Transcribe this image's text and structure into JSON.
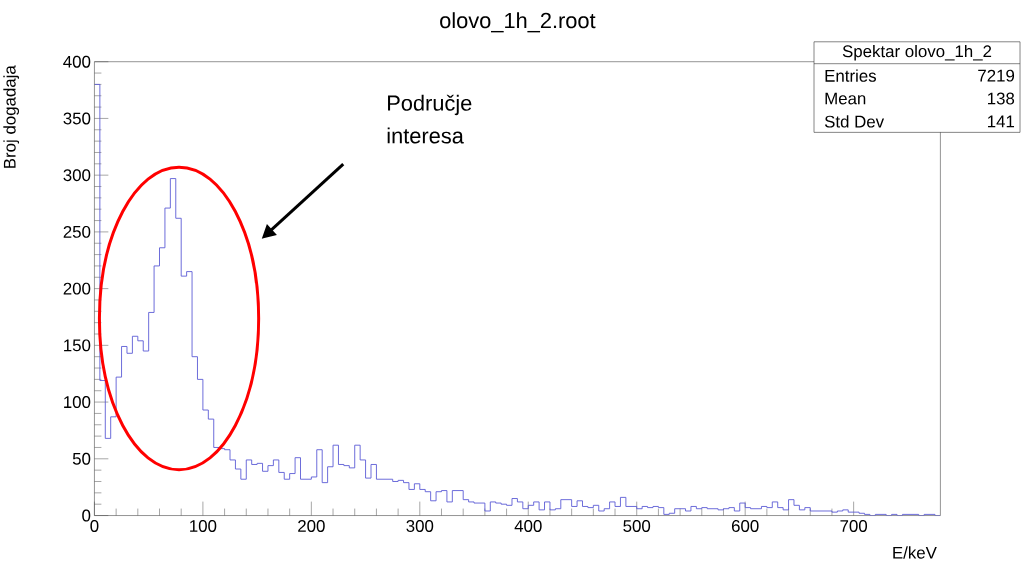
{
  "chart_data": {
    "type": "histogram",
    "title": "olovo_1h_2.root",
    "xlabel": "E/keV",
    "ylabel": "Broj dogadaja",
    "color": "#5c5cd6",
    "bins": [
      0,
      5,
      10,
      15,
      20,
      25,
      30,
      35,
      40,
      45,
      50,
      55,
      60,
      65,
      70,
      75,
      80,
      85,
      90,
      95,
      100,
      105,
      110,
      115,
      120,
      125,
      130,
      135,
      140,
      145,
      150,
      155,
      160,
      165,
      170,
      175,
      180,
      185,
      190,
      195,
      200,
      205,
      210,
      215,
      220,
      225,
      230,
      235,
      240,
      245,
      250,
      255,
      260,
      265,
      270,
      275,
      280,
      285,
      290,
      295,
      300,
      305,
      310,
      315,
      320,
      325,
      330,
      335,
      340,
      345,
      350,
      355,
      360,
      365,
      370,
      375,
      380,
      385,
      390,
      395,
      400,
      405,
      410,
      415,
      420,
      425,
      430,
      435,
      440,
      445,
      450,
      455,
      460,
      465,
      470,
      475,
      480,
      485,
      490,
      495,
      500,
      505,
      510,
      515,
      520,
      525,
      530,
      535,
      540,
      545,
      550,
      555,
      560,
      565,
      570,
      575,
      580,
      585,
      590,
      595,
      600,
      605,
      610,
      615,
      620,
      625,
      630,
      635,
      640,
      645,
      650,
      655,
      660,
      665,
      670,
      675,
      680,
      685,
      690,
      695,
      700,
      705,
      710,
      715,
      720,
      725,
      730,
      735,
      740,
      745,
      750,
      755,
      760,
      765,
      770,
      775,
      780
    ],
    "values": [
      380,
      119,
      68,
      87,
      122,
      149,
      143,
      158,
      154,
      145,
      179,
      220,
      236,
      271,
      297,
      262,
      211,
      215,
      140,
      120,
      93,
      85,
      60,
      59,
      58,
      49,
      41,
      32,
      49,
      45,
      46,
      39,
      44,
      49,
      38,
      32,
      37,
      51,
      32,
      32,
      34,
      58,
      29,
      43,
      62,
      45,
      44,
      42,
      62,
      49,
      33,
      45,
      32,
      32,
      32,
      30,
      31,
      29,
      23,
      28,
      23,
      21,
      13,
      21,
      22,
      12,
      22,
      22,
      14,
      12,
      11,
      11,
      4,
      12,
      11,
      10,
      9,
      15,
      12,
      6,
      9,
      12,
      5,
      12,
      5,
      6,
      14,
      14,
      8,
      13,
      8,
      7,
      9,
      4,
      6,
      12,
      8,
      16,
      8,
      8,
      6,
      8,
      7,
      8,
      7,
      1,
      2,
      6,
      6,
      4,
      8,
      6,
      7,
      6,
      6,
      5,
      6,
      7,
      4,
      11,
      7,
      6,
      6,
      8,
      7,
      12,
      7,
      5,
      14,
      9,
      5,
      7,
      4,
      4,
      4,
      4,
      3,
      4,
      5,
      3,
      3,
      2,
      1,
      0,
      1,
      1,
      0,
      1,
      0,
      1,
      1,
      1,
      0,
      1,
      1,
      0
    ],
    "xlim": [
      0,
      780
    ],
    "xticks": [
      0,
      100,
      200,
      300,
      400,
      500,
      600,
      700
    ],
    "ylim": [
      0,
      400
    ],
    "yticks": [
      0,
      50,
      100,
      150,
      200,
      250,
      300,
      350,
      400
    ],
    "annotations": [
      "Područje interesa",
      "Spektar olovo_1h_2",
      "Entries",
      "7219",
      "Mean",
      "138",
      "Std Dev",
      "141"
    ]
  }
}
